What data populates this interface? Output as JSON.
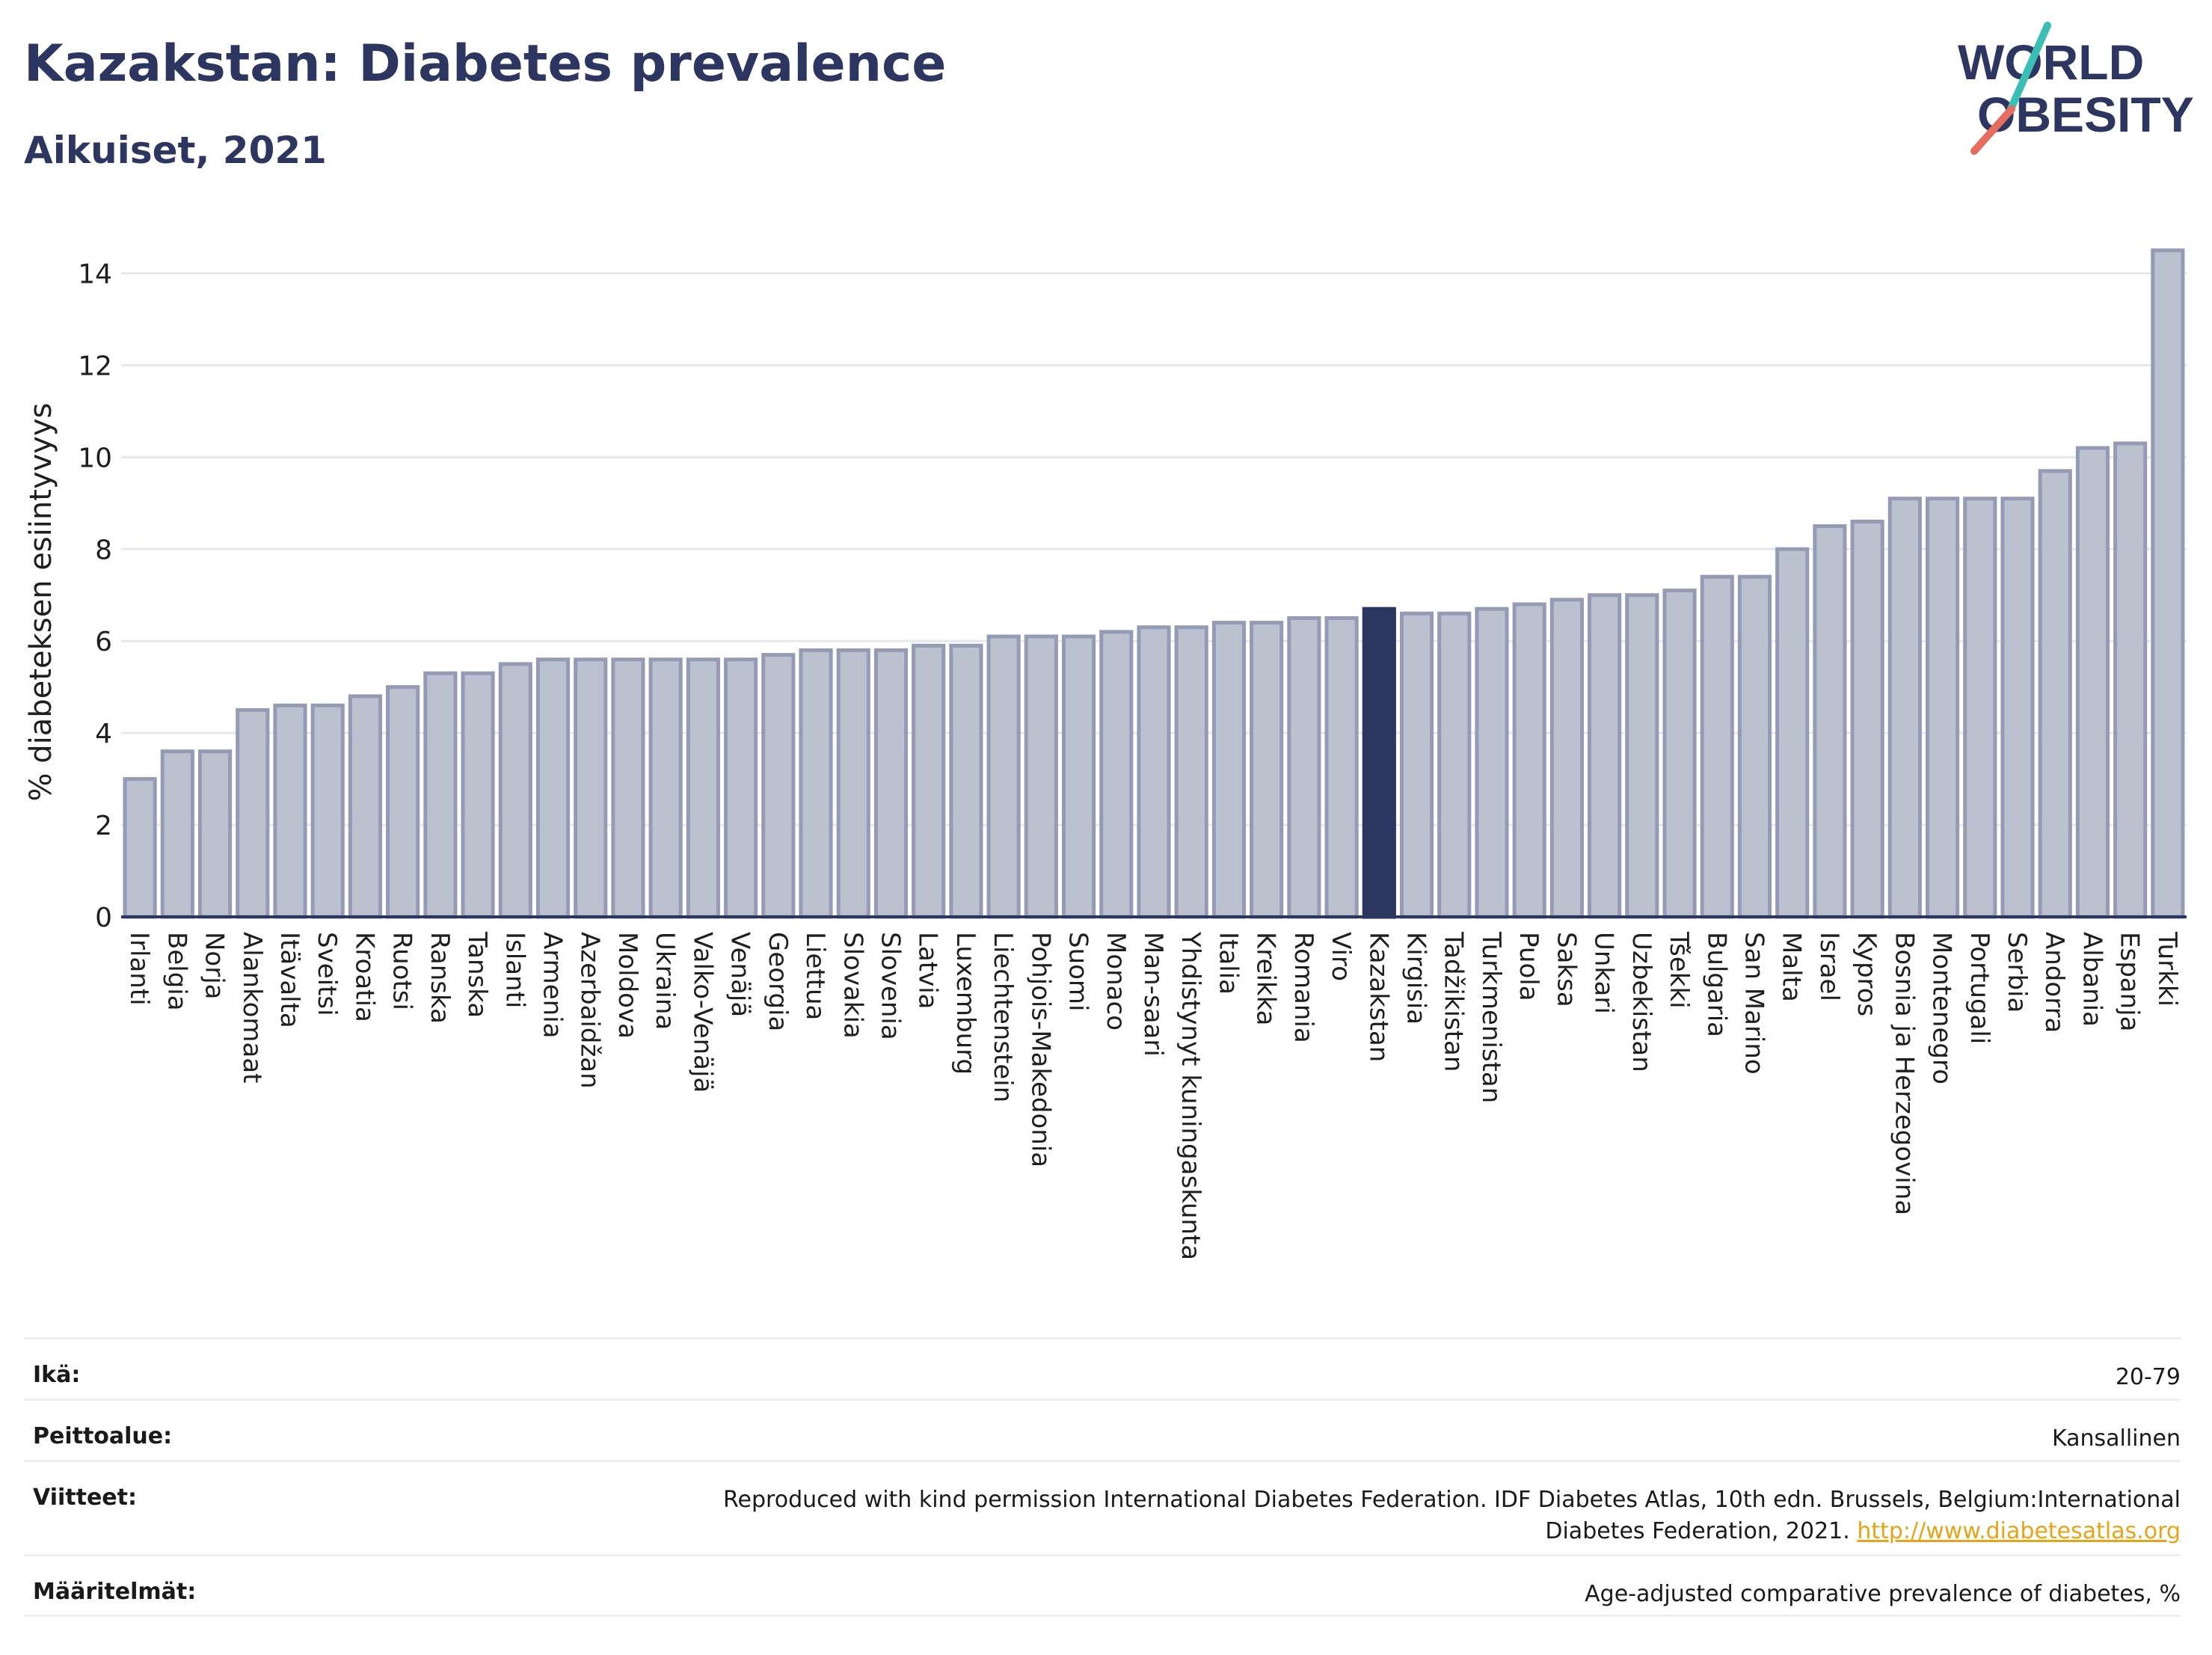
{
  "header": {
    "title": "Kazakstan: Diabetes prevalence",
    "subtitle": "Aikuiset, 2021"
  },
  "logo": {
    "line1": "WORLD",
    "line2": "OBESITY",
    "colors": {
      "text": "#2d3561",
      "slash_teal": "#3bbfb5",
      "slash_coral": "#e86b5f"
    }
  },
  "colors": {
    "bar_fill": "#bcc1d0",
    "bar_stroke": "#959bb5",
    "highlight_fill": "#2d3561",
    "grid": "#e6e8ef",
    "axis": "#2d3561"
  },
  "chart_data": {
    "type": "bar",
    "title": "",
    "xlabel": "",
    "ylabel": "% diabeteksen esiintyvyys",
    "ylim": [
      0,
      15
    ],
    "yticks": [
      0,
      2,
      4,
      6,
      8,
      10,
      12,
      14
    ],
    "grid": true,
    "highlight": "Kazakstan",
    "categories": [
      "Irlanti",
      "Belgia",
      "Norja",
      "Alankomaat",
      "Itävalta",
      "Sveitsi",
      "Kroatia",
      "Ruotsi",
      "Ranska",
      "Tanska",
      "Islanti",
      "Armenia",
      "Azerbaidžan",
      "Moldova",
      "Ukraina",
      "Valko-Venäjä",
      "Venäjä",
      "Georgia",
      "Liettua",
      "Slovakia",
      "Slovenia",
      "Latvia",
      "Luxemburg",
      "Liechtenstein",
      "Pohjois-Makedonia",
      "Suomi",
      "Monaco",
      "Man-saari",
      "Yhdistynyt kuningaskunta",
      "Italia",
      "Kreikka",
      "Romania",
      "Viro",
      "Kazakstan",
      "Kirgisia",
      "Tadžikistan",
      "Turkmenistan",
      "Puola",
      "Saksa",
      "Unkari",
      "Uzbekistan",
      "Tšekki",
      "Bulgaria",
      "San Marino",
      "Malta",
      "Israel",
      "Kypros",
      "Bosnia ja Herzegovina",
      "Montenegro",
      "Portugali",
      "Serbia",
      "Andorra",
      "Albania",
      "Espanja",
      "Turkki"
    ],
    "values": [
      3.0,
      3.6,
      3.6,
      4.5,
      4.6,
      4.6,
      4.8,
      5.0,
      5.3,
      5.3,
      5.5,
      5.6,
      5.6,
      5.6,
      5.6,
      5.6,
      5.6,
      5.7,
      5.8,
      5.8,
      5.8,
      5.9,
      5.9,
      6.1,
      6.1,
      6.1,
      6.2,
      6.3,
      6.3,
      6.4,
      6.4,
      6.5,
      6.5,
      6.7,
      6.6,
      6.6,
      6.7,
      6.8,
      6.9,
      7.0,
      7.0,
      7.1,
      7.4,
      7.4,
      8.0,
      8.5,
      8.6,
      9.1,
      9.1,
      9.1,
      9.1,
      9.7,
      10.2,
      10.3,
      14.5
    ]
  },
  "meta": [
    {
      "label": "Ikä:",
      "value": "20-79"
    },
    {
      "label": "Peittoalue:",
      "value": "Kansallinen"
    },
    {
      "label": "Viitteet:",
      "value": "Reproduced with kind permission International Diabetes Federation.  IDF Diabetes Atlas, 10th edn. Brussels, Belgium:International Diabetes Federation, 2021.",
      "link": "http://www.diabetesatlas.org"
    },
    {
      "label": "Määritelmät:",
      "value": "Age-adjusted comparative prevalence of diabetes, %"
    }
  ]
}
